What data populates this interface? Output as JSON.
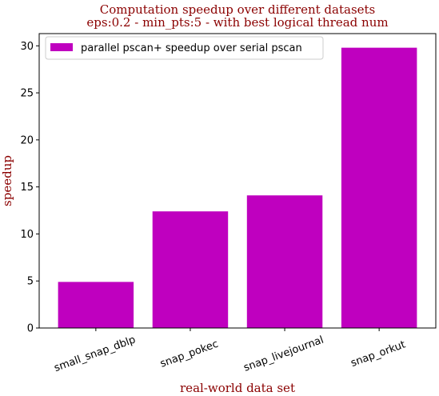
{
  "chart_data": {
    "type": "bar",
    "title": "Computation speedup over different datasets",
    "subtitle": "eps:0.2 - min_pts:5 - with best logical thread num",
    "xlabel": "real-world data set",
    "ylabel": "speedup",
    "categories": [
      "small_snap_dblp",
      "snap_pokec",
      "snap_livejournal",
      "snap_orkut"
    ],
    "series": [
      {
        "name": "parallel pscan+ speedup over serial pscan",
        "values": [
          4.9,
          12.4,
          14.1,
          29.8
        ],
        "color": "#bf00bf"
      }
    ],
    "ylim": [
      0,
      31.3
    ],
    "yticks": [
      0,
      5,
      10,
      15,
      20,
      25,
      30
    ],
    "grid": false,
    "legend_position": "top-left",
    "xtick_rotation": -20
  }
}
